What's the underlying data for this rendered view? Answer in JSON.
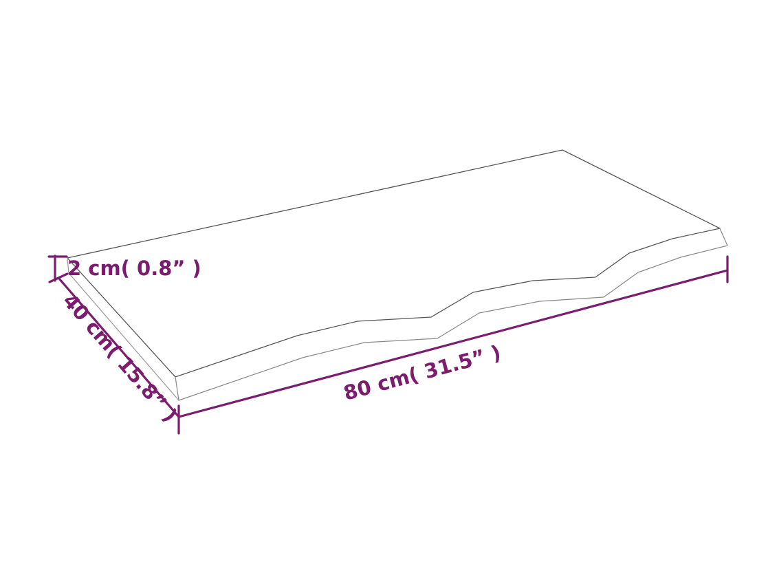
{
  "dimensions": {
    "height_label": "2 cm( 0.8”  )",
    "length_label": "80 cm( 31.5”  )",
    "depth_label": "40 cm( 15.8”  )"
  },
  "colors": {
    "dimension": "#7b1c6f",
    "outline": "#555555",
    "outline_light": "#999999",
    "background": "#ffffff"
  }
}
